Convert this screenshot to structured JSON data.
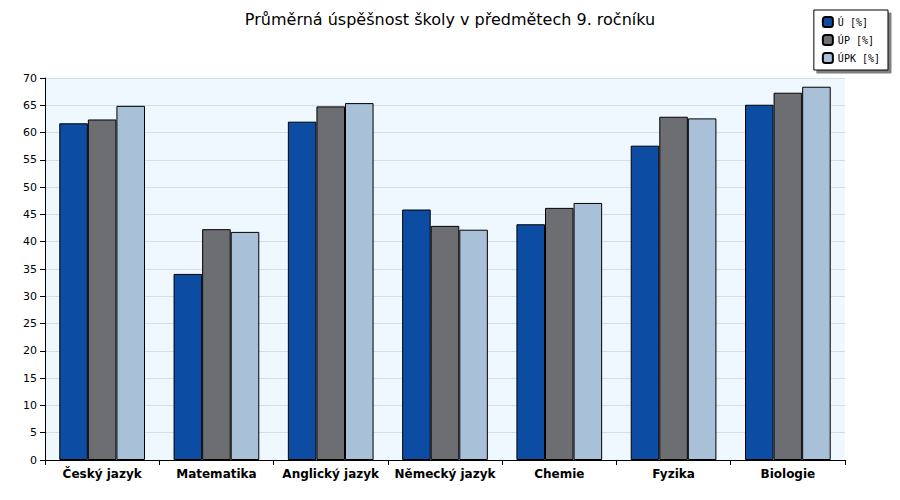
{
  "chart_data": {
    "type": "bar",
    "title": "Průměrná úspěšnost školy v předmětech 9. ročníku",
    "categories": [
      "Český jazyk",
      "Matematika",
      "Anglický jazyk",
      "Německý jazyk",
      "Chemie",
      "Fyzika",
      "Biologie"
    ],
    "series": [
      {
        "name": "Ú [%]",
        "color": "#0d4ca3",
        "values": [
          61.7,
          34.1,
          62.0,
          45.9,
          43.2,
          57.6,
          65.1
        ]
      },
      {
        "name": "ÚP [%]",
        "color": "#6d6e72",
        "values": [
          62.4,
          42.3,
          64.8,
          42.9,
          46.2,
          62.9,
          67.3
        ]
      },
      {
        "name": "ÚPK [%]",
        "color": "#a8c0d8",
        "values": [
          64.9,
          41.8,
          65.4,
          42.2,
          47.1,
          62.6,
          68.4
        ]
      }
    ],
    "ylim": [
      0,
      70
    ],
    "yticks": [
      0,
      5,
      10,
      15,
      20,
      25,
      30,
      35,
      40,
      45,
      50,
      55,
      60,
      65,
      70
    ],
    "grid": true,
    "legend": "top-right"
  }
}
